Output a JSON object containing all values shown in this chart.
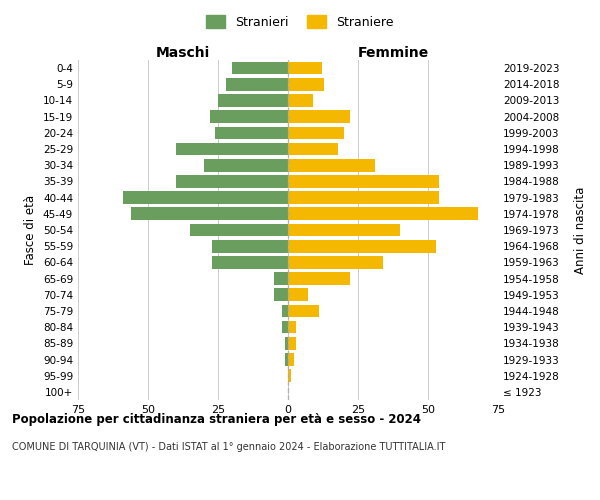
{
  "age_groups": [
    "100+",
    "95-99",
    "90-94",
    "85-89",
    "80-84",
    "75-79",
    "70-74",
    "65-69",
    "60-64",
    "55-59",
    "50-54",
    "45-49",
    "40-44",
    "35-39",
    "30-34",
    "25-29",
    "20-24",
    "15-19",
    "10-14",
    "5-9",
    "0-4"
  ],
  "birth_years": [
    "≤ 1923",
    "1924-1928",
    "1929-1933",
    "1934-1938",
    "1939-1943",
    "1944-1948",
    "1949-1953",
    "1954-1958",
    "1959-1963",
    "1964-1968",
    "1969-1973",
    "1974-1978",
    "1979-1983",
    "1984-1988",
    "1989-1993",
    "1994-1998",
    "1999-2003",
    "2004-2008",
    "2009-2013",
    "2014-2018",
    "2019-2023"
  ],
  "maschi": [
    0,
    0,
    1,
    1,
    2,
    2,
    5,
    5,
    27,
    27,
    35,
    56,
    59,
    40,
    30,
    40,
    26,
    28,
    25,
    22,
    20
  ],
  "femmine": [
    0,
    1,
    2,
    3,
    3,
    11,
    7,
    22,
    34,
    53,
    40,
    68,
    54,
    54,
    31,
    18,
    20,
    22,
    9,
    13,
    12
  ],
  "color_maschi": "#6a9e5e",
  "color_femmine": "#f5b800",
  "title": "Popolazione per cittadinanza straniera per età e sesso - 2024",
  "subtitle": "COMUNE DI TARQUINIA (VT) - Dati ISTAT al 1° gennaio 2024 - Elaborazione TUTTITALIA.IT",
  "xlabel_left": "Maschi",
  "xlabel_right": "Femmine",
  "ylabel_left": "Fasce di età",
  "ylabel_right": "Anni di nascita",
  "legend_maschi": "Stranieri",
  "legend_femmine": "Straniere",
  "xlim": 75,
  "background_color": "#ffffff",
  "grid_color": "#cccccc",
  "dashed_line_color": "#aaaaaa"
}
